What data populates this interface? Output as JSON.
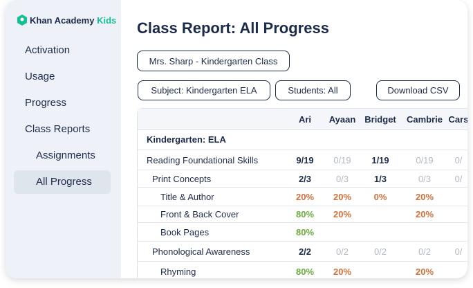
{
  "sidebar": {
    "logo": {
      "brand": "Khan Academy",
      "suffix": "Kids"
    },
    "nav": [
      {
        "label": "Activation",
        "level": 0
      },
      {
        "label": "Usage",
        "level": 0
      },
      {
        "label": "Progress",
        "level": 0
      },
      {
        "label": "Class Reports",
        "level": 0
      },
      {
        "label": "Assignments",
        "level": 1
      },
      {
        "label": "All Progress",
        "level": 1,
        "selected": true
      }
    ]
  },
  "header": {
    "title": "Class Report: All Progress"
  },
  "filters": {
    "class": "Mrs. Sharp - Kindergarten Class",
    "subject": "Subject: Kindergarten ELA",
    "students": "Students: All",
    "download": "Download CSV"
  },
  "table": {
    "columns": [
      "Ari",
      "Ayaan",
      "Bridget",
      "Cambrie",
      "Cars"
    ],
    "rows": [
      {
        "label": "Kindergarten: ELA",
        "level": 0,
        "cells": [
          null,
          null,
          null,
          null,
          null
        ]
      },
      {
        "label": "Reading Foundational Skills",
        "level": 0,
        "cells": [
          "9/19",
          "0/19",
          "1/19",
          "0/19",
          "0/"
        ]
      },
      {
        "label": "Print Concepts",
        "level": 1,
        "cells": [
          "2/3",
          "0/3",
          "1/3",
          "0/3",
          "0/"
        ]
      },
      {
        "label": "Title & Author",
        "level": 2,
        "cells": [
          "20%",
          "20%",
          "0%",
          "20%",
          null
        ]
      },
      {
        "label": "Front & Back Cover",
        "level": 2,
        "cells": [
          "80%",
          "20%",
          null,
          "20%",
          null
        ]
      },
      {
        "label": "Book Pages",
        "level": 2,
        "cells": [
          "80%",
          null,
          null,
          null,
          null
        ]
      },
      {
        "label": "Phonological Awareness",
        "level": 1,
        "cells": [
          "2/2",
          "0/2",
          "0/2",
          "0/2",
          "0/"
        ]
      },
      {
        "label": "Rhyming",
        "level": 2,
        "cells": [
          "80%",
          "20%",
          null,
          "20%",
          null
        ]
      }
    ]
  }
}
